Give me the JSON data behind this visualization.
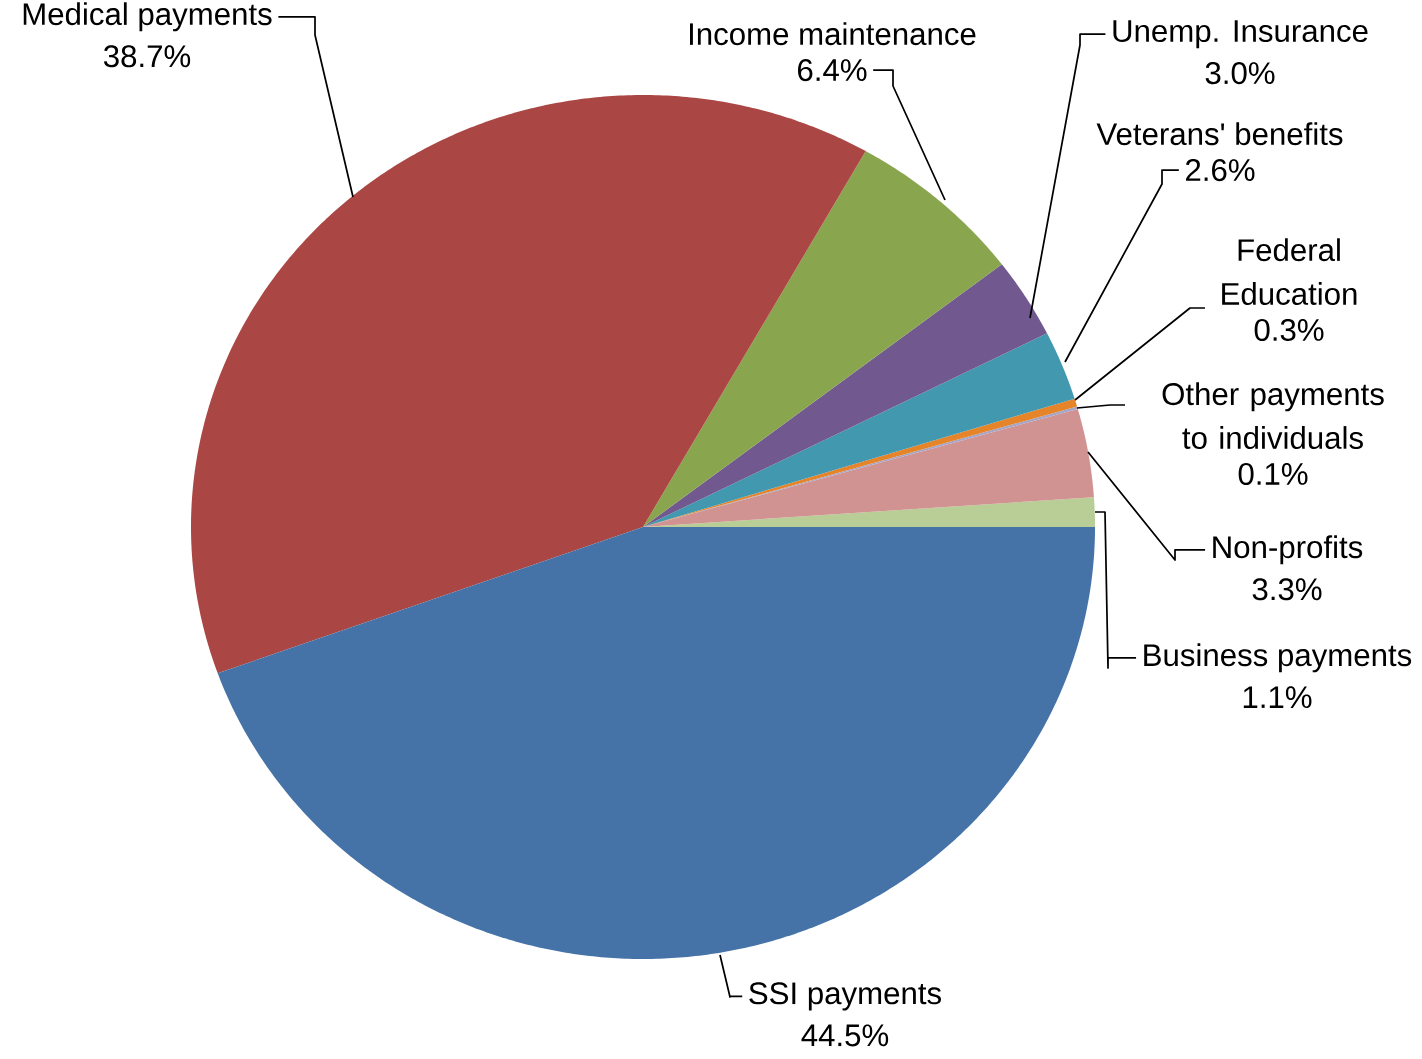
{
  "chart_data": {
    "type": "pie",
    "categories": [
      "Business payments",
      "Non-profits",
      "Other payments to individuals",
      "Federal Education",
      "Veterans' benefits",
      "Unemp. Insurance",
      "Income maintenance",
      "Medical payments",
      "SSI payments"
    ],
    "values": [
      1.1,
      3.3,
      0.1,
      0.3,
      2.6,
      3.0,
      6.4,
      38.7,
      44.5
    ],
    "value_labels": [
      "1.1%",
      "3.3%",
      "0.1%",
      "0.3%",
      "2.6%",
      "3.0%",
      "6.4%",
      "38.7%",
      "44.5%"
    ],
    "colors": [
      "#b9cd96",
      "#d09392",
      "#a5a5c8",
      "#e6842a",
      "#4198af",
      "#71588f",
      "#89a54e",
      "#aa4643",
      "#4572a7"
    ]
  }
}
